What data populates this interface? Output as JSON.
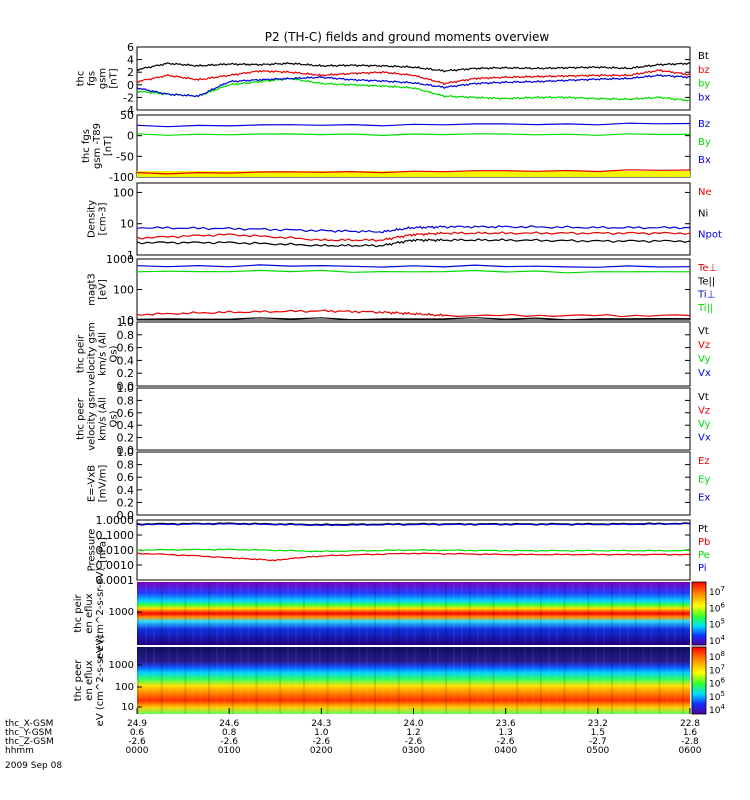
{
  "title": "P2 (TH-C) fields and ground moments overview",
  "colors": {
    "black": "#000000",
    "red": "#e60000",
    "green": "#00dd00",
    "blue": "#0000dd",
    "yellow": "#f5f500"
  },
  "chart_data": [
    {
      "type": "line",
      "ylabel": "thc fgs gsm [nT]",
      "ylim": [
        -4,
        6
      ],
      "yticks": [
        "6",
        "4",
        "2",
        "0",
        "-2",
        "-4"
      ],
      "legend": [
        "Bt",
        "bz",
        "by",
        "bx"
      ],
      "series": [
        {
          "name": "Bt",
          "x": [
            0,
            20,
            40,
            60,
            80,
            100,
            120,
            140,
            160,
            180,
            200,
            220,
            240,
            260,
            280,
            300,
            320,
            340,
            360
          ],
          "values": [
            2.4,
            3.4,
            3.0,
            3.3,
            3.2,
            3.4,
            3.0,
            3.1,
            3.0,
            2.8,
            2.2,
            2.6,
            2.7,
            2.6,
            2.7,
            2.8,
            2.6,
            3.2,
            3.4
          ]
        },
        {
          "name": "bz",
          "x": [
            0,
            20,
            40,
            60,
            80,
            100,
            120,
            140,
            160,
            180,
            200,
            220,
            240,
            260,
            280,
            300,
            320,
            340,
            360
          ],
          "values": [
            0.5,
            1.5,
            0.8,
            1.5,
            2.2,
            2.0,
            1.5,
            1.8,
            2.0,
            1.5,
            0.2,
            1.0,
            1.2,
            1.3,
            1.4,
            1.5,
            1.5,
            2.3,
            1.6
          ]
        },
        {
          "name": "by",
          "x": [
            0,
            20,
            40,
            60,
            80,
            100,
            120,
            140,
            160,
            180,
            200,
            220,
            240,
            260,
            280,
            300,
            320,
            340,
            360
          ],
          "values": [
            -1.0,
            -1.5,
            -1.8,
            0.0,
            0.5,
            1.0,
            0.2,
            0.0,
            -0.2,
            -0.5,
            -1.8,
            -2.0,
            -2.2,
            -2.0,
            -2.0,
            -2.2,
            -2.3,
            -2.0,
            -2.5
          ]
        },
        {
          "name": "bx",
          "x": [
            0,
            20,
            40,
            60,
            80,
            100,
            120,
            140,
            160,
            180,
            200,
            220,
            240,
            260,
            280,
            300,
            320,
            340,
            360
          ],
          "values": [
            -0.5,
            -1.5,
            -1.8,
            0.5,
            0.8,
            1.0,
            1.2,
            0.8,
            0.6,
            0.3,
            -0.4,
            0.2,
            0.4,
            0.5,
            0.7,
            0.9,
            1.0,
            1.5,
            1.2
          ]
        }
      ]
    },
    {
      "type": "line",
      "ylabel": "thc fgs gsm -T89 [nT]",
      "ylim": [
        -110,
        50
      ],
      "yticks": [
        "50",
        "0",
        "-50",
        "-100"
      ],
      "legend": [
        "Bz",
        "By",
        "Bx"
      ],
      "series": [
        {
          "name": "Bz",
          "x": [
            0,
            360
          ],
          "values": [
            22,
            28
          ]
        },
        {
          "name": "By",
          "x": [
            0,
            360
          ],
          "values": [
            0,
            0
          ]
        },
        {
          "name": "Bx",
          "x": [
            0,
            360
          ],
          "values": [
            -100,
            -92
          ]
        }
      ]
    },
    {
      "type": "line",
      "ylabel": "Density [cm-3]",
      "yscale": "log",
      "ylim": [
        1,
        200
      ],
      "yticks": [
        "100",
        "10",
        "1"
      ],
      "legend": [
        "Ne",
        "Ni",
        "Npot"
      ],
      "series": [
        {
          "name": "Npot",
          "x": [
            0,
            60,
            120,
            160,
            180,
            200,
            240,
            300,
            360
          ],
          "values": [
            7.5,
            7.0,
            6.0,
            5.5,
            7.5,
            8.0,
            8.0,
            7.5,
            7.5
          ]
        },
        {
          "name": "Ne",
          "x": [
            0,
            60,
            120,
            160,
            180,
            200,
            240,
            300,
            360
          ],
          "values": [
            3.5,
            4.5,
            3.0,
            3.0,
            4.5,
            5.0,
            5.0,
            5.0,
            5.0
          ]
        },
        {
          "name": "Ni",
          "x": [
            0,
            60,
            120,
            160,
            180,
            200,
            240,
            300,
            360
          ],
          "values": [
            2.5,
            2.5,
            2.0,
            2.0,
            3.0,
            3.0,
            3.0,
            2.8,
            2.8
          ]
        }
      ]
    },
    {
      "type": "line",
      "ylabel": "magt3 [eV]",
      "yscale": "log",
      "ylim": [
        10,
        1000
      ],
      "yticks": [
        "1000",
        "100",
        "10"
      ],
      "legend": [
        "Te⊥",
        "Te||",
        "Ti⊥",
        "Ti||"
      ],
      "series": [
        {
          "name": "Ti⊥",
          "x": [
            0,
            360
          ],
          "values": [
            600,
            560
          ]
        },
        {
          "name": "Ti||",
          "x": [
            0,
            360
          ],
          "values": [
            400,
            380
          ]
        },
        {
          "name": "Te⊥",
          "x": [
            0,
            60,
            120,
            160,
            180,
            200,
            360
          ],
          "values": [
            15,
            18,
            20,
            18,
            16,
            14,
            14
          ]
        },
        {
          "name": "Te||",
          "x": [
            0,
            360
          ],
          "values": [
            11,
            11
          ]
        }
      ]
    },
    {
      "type": "line",
      "ylabel": "thc peir velocity gsm km/s (All Qs)",
      "ylim": [
        0,
        1
      ],
      "yticks": [
        "1.0",
        "0.8",
        "0.6",
        "0.4",
        "0.2",
        "0.0"
      ],
      "legend": [
        "Vt",
        "Vz",
        "Vy",
        "Vx"
      ],
      "series": []
    },
    {
      "type": "line",
      "ylabel": "thc peer velocity gsm km/s (All Qs)",
      "ylim": [
        0,
        1
      ],
      "yticks": [
        "1.0",
        "0.8",
        "0.6",
        "0.4",
        "0.2",
        "0.0"
      ],
      "legend": [
        "Vt",
        "Vz",
        "Vy",
        "Vx"
      ],
      "series": []
    },
    {
      "type": "line",
      "ylabel": "E=-VxB [mV/m]",
      "ylim": [
        0,
        1
      ],
      "yticks": [
        "1.0",
        "0.8",
        "0.6",
        "0.4",
        "0.2",
        "0.0"
      ],
      "legend": [
        "Ez",
        "Ey",
        "Ex"
      ],
      "series": []
    },
    {
      "type": "line",
      "ylabel": "Pressure [nPa]",
      "yscale": "log",
      "ylim": [
        0.0001,
        1
      ],
      "yticks": [
        "1.0000",
        "0.1000",
        "0.0100",
        "0.0010",
        "0.0001"
      ],
      "legend": [
        "Pt",
        "Pb",
        "Pe",
        "Pi"
      ],
      "series": [
        {
          "name": "Pt",
          "x": [
            0,
            60,
            120,
            180,
            240,
            300,
            360
          ],
          "values": [
            0.55,
            0.6,
            0.5,
            0.55,
            0.55,
            0.55,
            0.6
          ]
        },
        {
          "name": "Pi",
          "x": [
            0,
            60,
            120,
            180,
            240,
            300,
            360
          ],
          "values": [
            0.5,
            0.55,
            0.45,
            0.5,
            0.5,
            0.5,
            0.55
          ]
        },
        {
          "name": "Pe",
          "x": [
            0,
            60,
            120,
            180,
            240,
            300,
            360
          ],
          "values": [
            0.01,
            0.011,
            0.008,
            0.01,
            0.009,
            0.009,
            0.009
          ]
        },
        {
          "name": "Pb",
          "x": [
            0,
            60,
            90,
            120,
            180,
            240,
            300,
            360
          ],
          "values": [
            0.006,
            0.003,
            0.002,
            0.004,
            0.006,
            0.005,
            0.005,
            0.005
          ]
        }
      ]
    },
    {
      "type": "heatmap",
      "ylabel": "thc peir en eflux eV (cm^2-s-sr-eV)",
      "yticks": [
        "1000"
      ],
      "colorbar": [
        "10^7",
        "10^6",
        "10^5",
        "10^4"
      ]
    },
    {
      "type": "heatmap",
      "ylabel": "thc peer en eflux eV (cm^2-s-sr-eV)",
      "yticks": [
        "1000",
        "100",
        "10"
      ],
      "colorbar": [
        "10^8",
        "10^7",
        "10^6",
        "10^5",
        "10^4"
      ]
    }
  ],
  "xaxis": {
    "rows": [
      {
        "label": "thc_X-GSM",
        "values": [
          "24.9",
          "24.6",
          "24.3",
          "24.0",
          "23.6",
          "23.2",
          "22.8"
        ]
      },
      {
        "label": "thc_Y-GSM",
        "values": [
          "0.6",
          "0.8",
          "1.0",
          "1.2",
          "1.3",
          "1.5",
          "1.6"
        ]
      },
      {
        "label": "thc_Z-GSM",
        "values": [
          "-2.6",
          "-2.6",
          "-2.6",
          "-2.6",
          "-2.6",
          "-2.7",
          "-2.8"
        ]
      },
      {
        "label": "hhmm",
        "values": [
          "0000",
          "0100",
          "0200",
          "0300",
          "0400",
          "0500",
          "0600"
        ]
      }
    ],
    "date": "2009 Sep 08"
  }
}
